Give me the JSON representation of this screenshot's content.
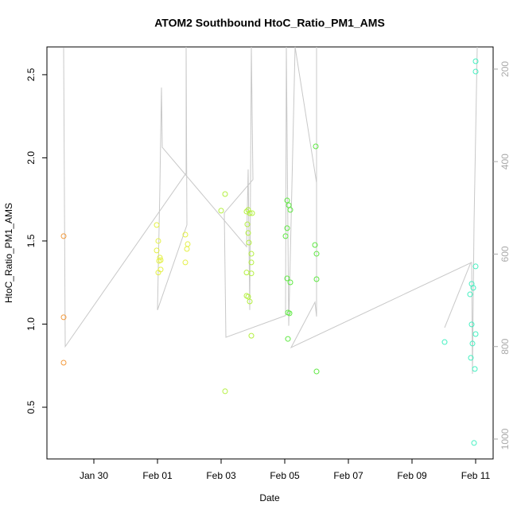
{
  "chart_data": {
    "type": "scatter",
    "title": "ATOM2 Southbound HtoC_Ratio_PM1_AMS",
    "x_label": "Date",
    "y_label": "HtoC_Ratio_PM1_AMS",
    "xlim": [
      28.525,
      42.55
    ],
    "xticks": [
      {
        "value": 30,
        "label": "Jan 30"
      },
      {
        "value": 32,
        "label": "Feb 01"
      },
      {
        "value": 34,
        "label": "Feb 03"
      },
      {
        "value": 36,
        "label": "Feb 05"
      },
      {
        "value": 38,
        "label": "Feb 07"
      },
      {
        "value": 40,
        "label": "Feb 09"
      },
      {
        "value": 42,
        "label": "Feb 11"
      }
    ],
    "ylim": [
      0.189,
      2.667
    ],
    "yticks": [
      0.5,
      {
        "value": 1,
        "label": "1.0"
      },
      1.5,
      {
        "value": 2,
        "label": "2.0"
      },
      2.5
    ],
    "y2lim": [
      1043,
      152
    ],
    "y2ticks": [
      200,
      400,
      600,
      800,
      1000
    ],
    "series": [
      {
        "color": "#f39a3c",
        "x": [
          29.05,
          29.05,
          29.05
        ],
        "values": [
          1.529,
          1.041,
          0.768
        ]
      },
      {
        "color": "#e4f046",
        "x": [
          31.975,
          32.025,
          31.975,
          32.075,
          32.1,
          32.05,
          32.1,
          32.025,
          32.875,
          32.95,
          32.925,
          32.875
        ],
        "values": [
          1.596,
          1.5,
          1.443,
          1.4,
          1.385,
          1.38,
          1.328,
          1.31,
          1.538,
          1.481,
          1.452,
          1.371
        ]
      },
      {
        "color": "#b4f040",
        "x": [
          34.0,
          34.125,
          34.125,
          34.8,
          34.85,
          34.9,
          34.975,
          34.825,
          34.85,
          34.875,
          34.8,
          34.95,
          34.8,
          34.85,
          34.9,
          34.95,
          34.95,
          34.95
        ],
        "values": [
          1.682,
          1.782,
          0.596,
          1.677,
          1.687,
          1.667,
          1.667,
          1.6,
          1.548,
          1.49,
          1.31,
          1.305,
          1.17,
          1.165,
          1.136,
          1.423,
          1.371,
          0.93
        ]
      },
      {
        "color": "#5ee842",
        "x": [
          36.075,
          36.125,
          36.175,
          36.025,
          36.075,
          36.075,
          36.175,
          36.1,
          36.15,
          36.1,
          36.95,
          37.0,
          37.0,
          37.0,
          36.975
        ],
        "values": [
          1.744,
          1.715,
          1.687,
          1.529,
          1.577,
          1.275,
          1.251,
          1.069,
          1.065,
          0.911,
          1.476,
          1.423,
          1.27,
          0.715,
          2.069
        ]
      },
      {
        "color": "#42f0c0",
        "x": [
          41.025,
          41.875,
          41.925,
          42.0,
          41.825,
          41.875,
          41.9,
          42.0,
          41.85,
          41.975,
          41.95,
          42.0,
          42.0
        ],
        "values": [
          0.892,
          1.242,
          1.218,
          1.347,
          1.179,
          0.998,
          0.883,
          0.94,
          0.797,
          0.73,
          0.285,
          2.581,
          2.519
        ]
      },
      {
        "type": "line",
        "axis": "y2",
        "color": "#c8c8c8",
        "x": [
          29.05,
          29.1,
          32.9,
          32.9,
          32.925,
          32.0,
          32.075,
          32.125,
          32.15,
          34.8,
          34.85,
          34.9,
          34.95,
          35.0,
          34.1,
          34.15,
          36.025,
          36.05,
          36.125,
          36.325,
          37.0,
          37.0,
          37.0,
          36.95,
          36.2,
          41.875,
          41.9,
          41.95,
          42.05,
          null,
          41.025,
          41.85
        ],
        "values": [
          154,
          800,
          425,
          152,
          537,
          721,
          456,
          240,
          369,
          584,
          417,
          721,
          152,
          439,
          511,
          780,
          733,
          152,
          755,
          152,
          446,
          152,
          735,
          704,
          802,
          618,
          859,
          532,
          152,
          null,
          759,
          618
        ]
      }
    ]
  }
}
